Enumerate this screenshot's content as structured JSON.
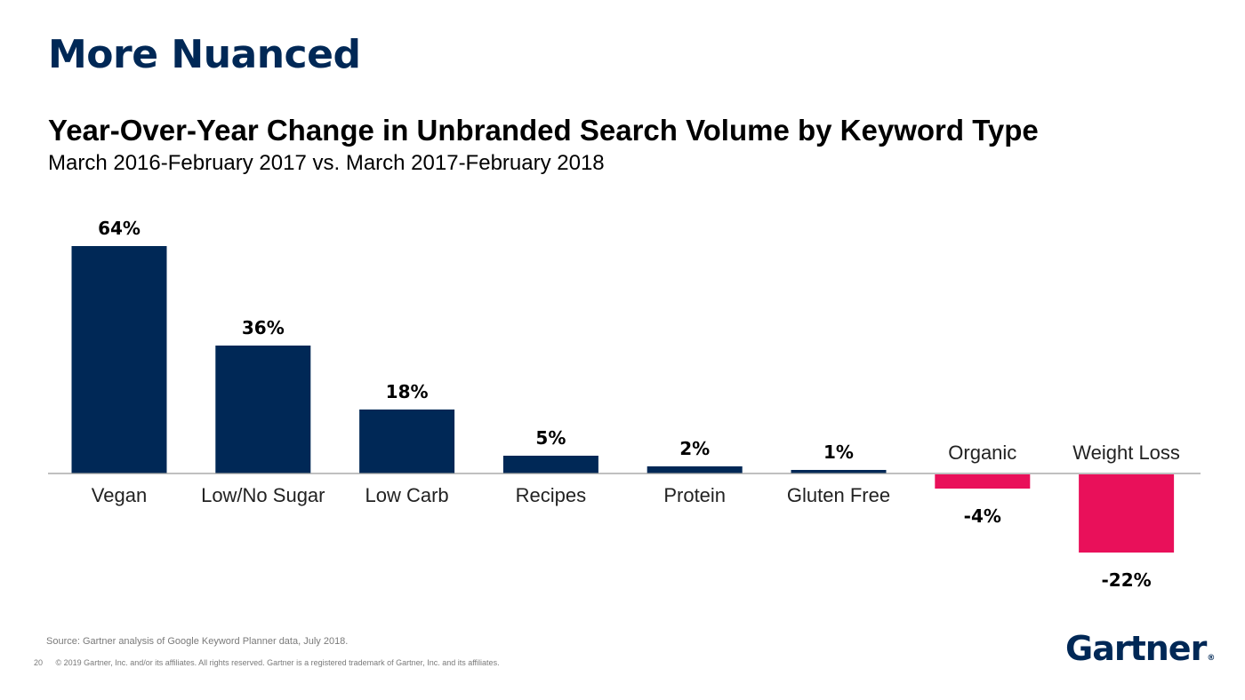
{
  "slide": {
    "title": "More Nuanced"
  },
  "chart_data": {
    "type": "bar",
    "title": "Year-Over-Year Change in Unbranded Search Volume by Keyword Type",
    "subtitle": "March 2016-February 2017 vs. March 2017-February 2018",
    "categories": [
      "Vegan",
      "Low/No Sugar",
      "Low Carb",
      "Recipes",
      "Protein",
      "Gluten Free",
      "Organic",
      "Weight Loss"
    ],
    "values": [
      64,
      36,
      18,
      5,
      2,
      1,
      -4,
      -22
    ],
    "data_labels": [
      "64%",
      "36%",
      "18%",
      "5%",
      "2%",
      "1%",
      "-4%",
      "-22%"
    ],
    "unit": "%",
    "xlabel": "",
    "ylabel": "",
    "grid": false,
    "legend": "none",
    "colors": {
      "positive": "#002856",
      "negative": "#E9105A"
    }
  },
  "footer": {
    "source": "Source: Gartner analysis of Google Keyword Planner data, July 2018.",
    "page_number": "20",
    "copyright": "© 2019 Gartner, Inc. and/or its affiliates. All rights reserved. Gartner is a registered trademark of Gartner, Inc. and its affiliates."
  },
  "logo": {
    "text": "Gartner",
    "mark": "®"
  }
}
